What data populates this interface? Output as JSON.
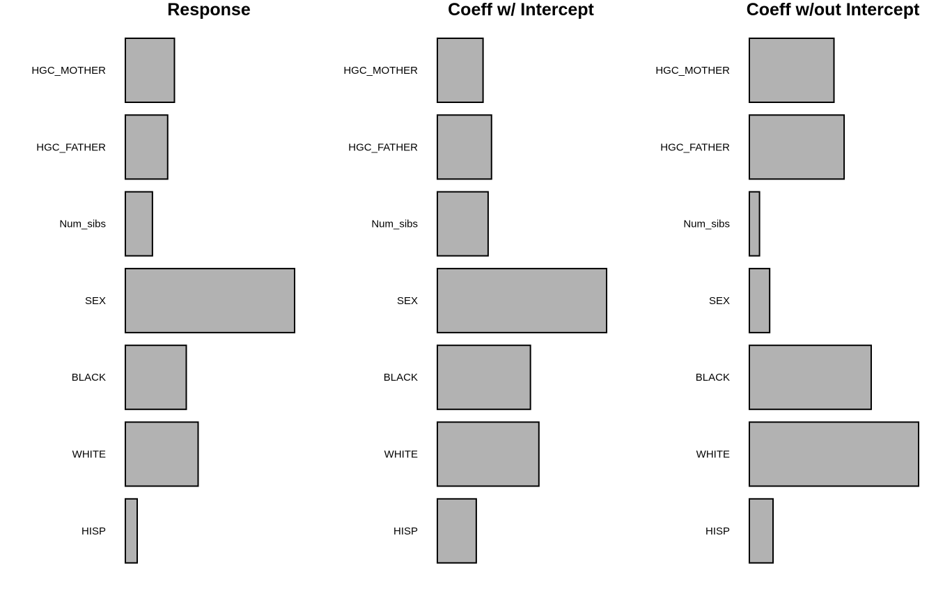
{
  "chart_data": [
    {
      "type": "bar",
      "orientation": "horizontal",
      "title": "Response",
      "categories": [
        "HGC_MOTHER",
        "HGC_FATHER",
        "Num_sibs",
        "SEX",
        "BLACK",
        "WHITE",
        "HISP"
      ],
      "values": [
        0.29,
        0.25,
        0.16,
        1.0,
        0.36,
        0.43,
        0.07
      ],
      "xlim": [
        0,
        1
      ],
      "grid": false,
      "bar_color": "#b2b2b2"
    },
    {
      "type": "bar",
      "orientation": "horizontal",
      "title": "Coeff w/ Intercept",
      "categories": [
        "HGC_MOTHER",
        "HGC_FATHER",
        "Num_sibs",
        "SEX",
        "BLACK",
        "WHITE",
        "HISP"
      ],
      "values": [
        0.27,
        0.32,
        0.3,
        1.0,
        0.55,
        0.6,
        0.23
      ],
      "xlim": [
        0,
        1
      ],
      "grid": false,
      "bar_color": "#b2b2b2"
    },
    {
      "type": "bar",
      "orientation": "horizontal",
      "title": "Coeff w/out Intercept",
      "categories": [
        "HGC_MOTHER",
        "HGC_FATHER",
        "Num_sibs",
        "SEX",
        "BLACK",
        "WHITE",
        "HISP"
      ],
      "values": [
        0.5,
        0.56,
        0.06,
        0.12,
        0.72,
        1.0,
        0.14
      ],
      "xlim": [
        0,
        1
      ],
      "grid": false,
      "bar_color": "#b2b2b2"
    }
  ]
}
